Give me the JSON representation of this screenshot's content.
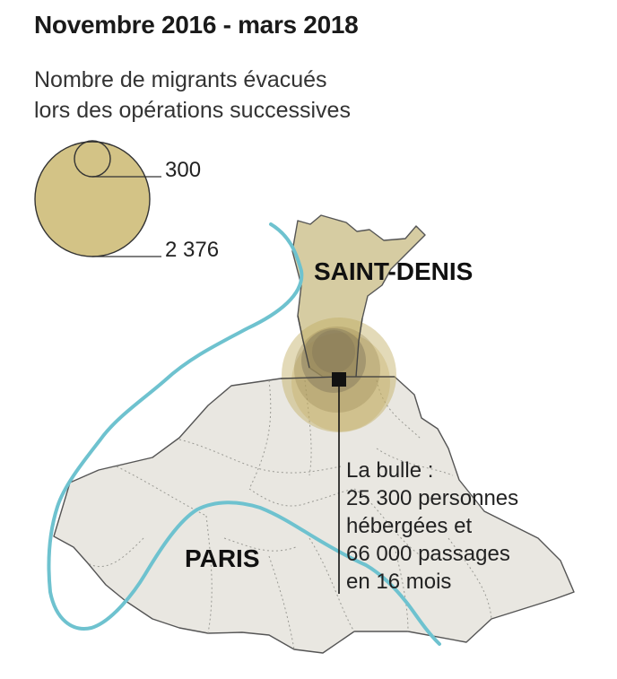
{
  "title": "Novembre 2016 - mars 2018",
  "legend": {
    "title_lines": [
      "Nombre de migrants évacués",
      "lors des opérations successives"
    ],
    "small_value": "300",
    "large_value": "2 376"
  },
  "labels": {
    "saint_denis": "SAINT-DENIS",
    "paris": "PARIS"
  },
  "annotation": {
    "lines": [
      "La bulle :",
      "25 300 personnes",
      "hébergées et",
      "66 000 passages",
      "en 16 mois"
    ]
  },
  "colors": {
    "circle_fill": "#d3c386",
    "saint_denis_fill": "#d6cca2",
    "paris_fill": "#e9e7e1",
    "river": "#6ec2cf",
    "outline": "#555555",
    "text": "#222222"
  }
}
